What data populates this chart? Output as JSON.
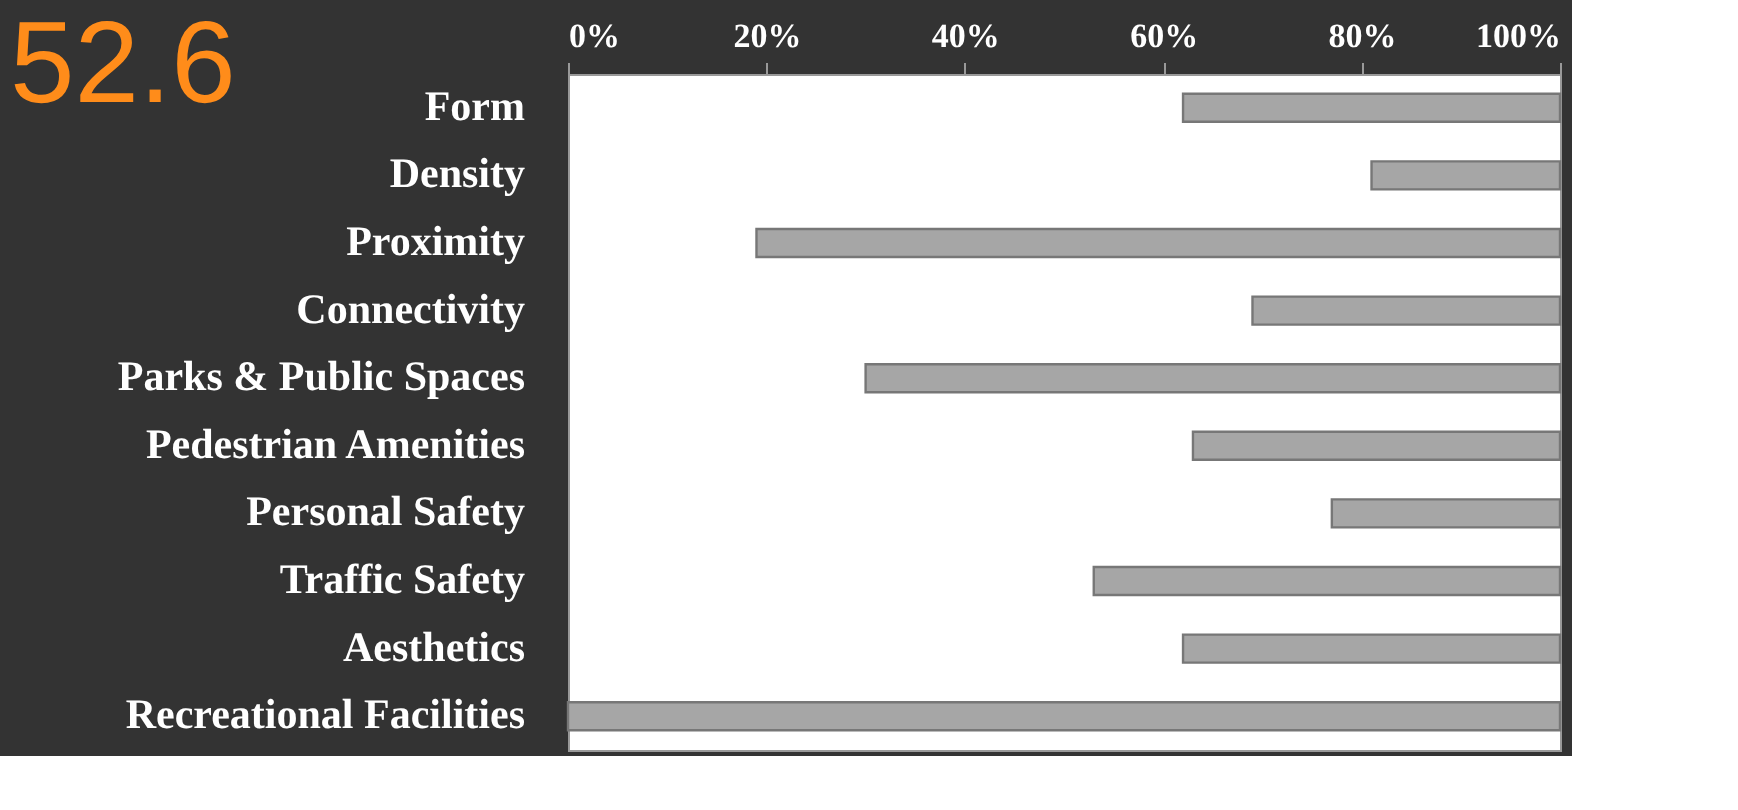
{
  "chart_data": {
    "type": "bar",
    "orientation": "horizontal",
    "title": "52.6",
    "categories": [
      "Form",
      "Density",
      "Proximity",
      "Connectivity",
      "Parks & Public Spaces",
      "Pedestrian Amenities",
      "Personal Safety",
      "Traffic Safety",
      "Aesthetics",
      "Recreational Facilities"
    ],
    "base": [
      62,
      81,
      19,
      69,
      30,
      63,
      77,
      53,
      62,
      0
    ],
    "values": [
      38,
      19,
      81,
      31,
      70,
      37,
      23,
      47,
      38,
      100
    ],
    "color": "#a6a6a6",
    "xlim": [
      0,
      100
    ],
    "xticks": [
      {
        "value": 0,
        "label": "0%"
      },
      {
        "value": 20,
        "label": "20%"
      },
      {
        "value": 40,
        "label": "40%"
      },
      {
        "value": 60,
        "label": "60%"
      },
      {
        "value": 80,
        "label": "80%"
      },
      {
        "value": 100,
        "label": "100%"
      }
    ],
    "grid": false
  }
}
